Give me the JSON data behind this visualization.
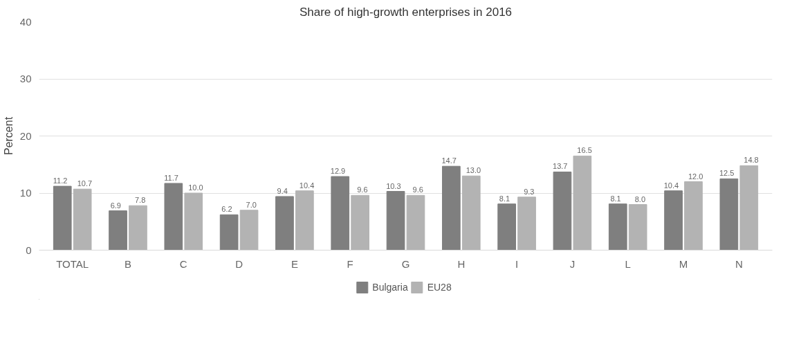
{
  "chart_data": {
    "type": "bar",
    "title": "Share of high-growth enterprises in 2016",
    "ylabel": "Percent",
    "categories": [
      "TOTAL",
      "B",
      "C",
      "D",
      "E",
      "F",
      "G",
      "H",
      "I",
      "J",
      "L",
      "M",
      "N"
    ],
    "series": [
      {
        "name": "Bulgaria",
        "color": "#7f7f7f",
        "values": [
          11.2,
          6.9,
          11.7,
          6.2,
          9.4,
          12.9,
          10.3,
          14.7,
          8.1,
          13.7,
          8.1,
          10.4,
          12.5
        ],
        "value_labels": [
          "11.2",
          "6.9",
          "11.7",
          "6.2",
          "9.4",
          "12.9",
          "10.3",
          "14.7",
          "8.1",
          "13.7",
          "8.1",
          "10.4",
          "12.5"
        ]
      },
      {
        "name": "EU28",
        "color": "#b3b3b3",
        "values": [
          10.7,
          7.8,
          10.0,
          7.0,
          10.4,
          9.6,
          9.6,
          13.0,
          9.3,
          16.5,
          8.0,
          12.0,
          14.8
        ],
        "value_labels": [
          "10.7",
          "7.8",
          "10.0",
          "7.0",
          "10.4",
          "9.6",
          "9.6",
          "13.0",
          "9.3",
          "16.5",
          "8.0",
          "12.0",
          "14.8"
        ]
      }
    ],
    "ylim": [
      0,
      40
    ],
    "yticks": [
      0,
      10,
      20,
      30,
      40
    ],
    "grid": "y",
    "legend": "bottom"
  }
}
